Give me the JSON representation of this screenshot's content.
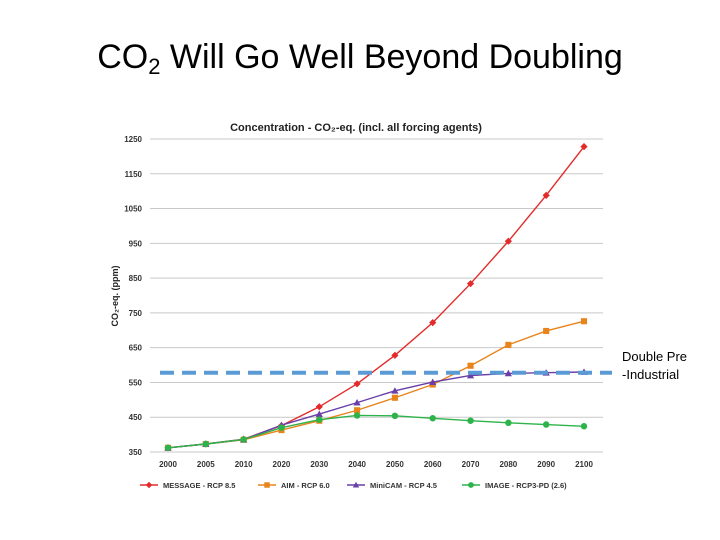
{
  "slide": {
    "title_prefix": "CO",
    "title_subscript": "2",
    "title_suffix": " Will Go Well Beyond Doubling",
    "annotation_line1": "Double Pre",
    "annotation_line2": "-Industrial",
    "reference_line_color": "#5b9bd5"
  },
  "chart_data": {
    "type": "line",
    "title": "Concentration - CO₂-eq. (incl. all forcing agents)",
    "ylabel": "CO₂-eq. (ppm)",
    "xlabel": "",
    "x": [
      "2000",
      "2005",
      "2010",
      "2020",
      "2030",
      "2040",
      "2050",
      "2060",
      "2070",
      "2080",
      "2090",
      "2100"
    ],
    "ylim": [
      350,
      1250
    ],
    "yticks": [
      "1250",
      "1150",
      "1050",
      "950",
      "850",
      "750",
      "650",
      "550",
      "450",
      "350"
    ],
    "grid": true,
    "legend_position": "bottom",
    "reference_line": {
      "value": 578,
      "style": "dashed"
    },
    "series": [
      {
        "name": "MESSAGE - RCP 8.5",
        "color": "#e32b2b",
        "marker": "diamond",
        "values": [
          362,
          373,
          387,
          426,
          480,
          546,
          628,
          722,
          834,
          956,
          1088,
          1228
        ]
      },
      {
        "name": "AIM - RCP 6.0",
        "color": "#e8841c",
        "marker": "square",
        "values": [
          362,
          373,
          385,
          413,
          440,
          470,
          506,
          544,
          598,
          658,
          698,
          726
        ]
      },
      {
        "name": "MiniCAM - RCP 4.5",
        "color": "#6a3fa8",
        "marker": "triangle",
        "values": [
          362,
          373,
          386,
          427,
          459,
          492,
          526,
          551,
          570,
          576,
          578,
          580
        ]
      },
      {
        "name": "IMAGE - RCP3-PD (2.6)",
        "color": "#2db34a",
        "marker": "circle",
        "values": [
          362,
          373,
          386,
          420,
          443,
          455,
          454,
          447,
          440,
          434,
          429,
          424
        ]
      }
    ]
  }
}
